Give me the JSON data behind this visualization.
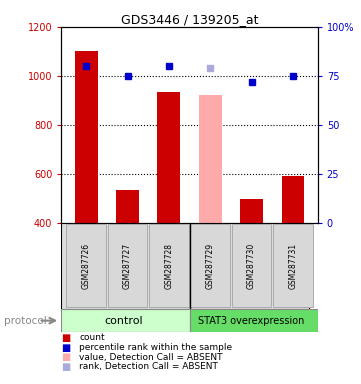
{
  "title": "GDS3446 / 139205_at",
  "samples": [
    "GSM287726",
    "GSM287727",
    "GSM287728",
    "GSM287729",
    "GSM287730",
    "GSM287731"
  ],
  "bar_values": [
    1100,
    535,
    935,
    920,
    495,
    590
  ],
  "bar_colors": [
    "#cc0000",
    "#cc0000",
    "#cc0000",
    "#ffaaaa",
    "#cc0000",
    "#cc0000"
  ],
  "percentile_values": [
    80,
    75,
    80,
    79,
    72,
    75
  ],
  "percentile_colors": [
    "#0000cc",
    "#0000cc",
    "#0000cc",
    "#aaaadd",
    "#0000cc",
    "#0000cc"
  ],
  "ylim_left": [
    400,
    1200
  ],
  "ylim_right": [
    0,
    100
  ],
  "yticks_left": [
    400,
    600,
    800,
    1000,
    1200
  ],
  "yticks_right": [
    0,
    25,
    50,
    75,
    100
  ],
  "ytick_labels_right": [
    "0",
    "25",
    "50",
    "75",
    "100%"
  ],
  "control_label": "control",
  "stat3_label": "STAT3 overexpression",
  "control_color": "#ccffcc",
  "stat3_color": "#66dd66",
  "protocol_label": "protocol",
  "legend_items": [
    {
      "color": "#cc0000",
      "label": "count"
    },
    {
      "color": "#0000cc",
      "label": "percentile rank within the sample"
    },
    {
      "color": "#ffaaaa",
      "label": "value, Detection Call = ABSENT"
    },
    {
      "color": "#aaaadd",
      "label": "rank, Detection Call = ABSENT"
    }
  ],
  "bar_width": 0.55,
  "background_color": "#ffffff",
  "left_tick_color": "#cc0000",
  "right_tick_color": "#0000cc"
}
